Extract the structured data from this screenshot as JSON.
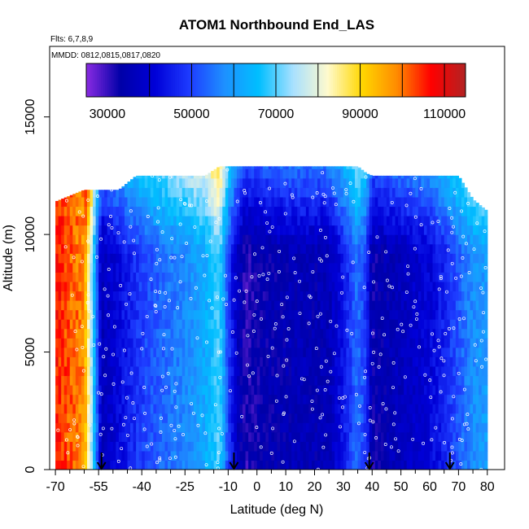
{
  "chart_data": {
    "type": "heatmap",
    "title": "ATOM1 Northbound End_LAS",
    "subtitle_flights": "Flts: 6,7,8,9",
    "subtitle_dates": "MMDD: 0812,0815,0817,0820",
    "xlabel": "Latitude (deg N)",
    "ylabel": "Altitude (m)",
    "xlim": [
      -72,
      86
    ],
    "ylim": [
      0,
      18000
    ],
    "x_ticks": [
      -70,
      -55,
      -40,
      -25,
      -10,
      0,
      10,
      20,
      30,
      40,
      50,
      60,
      70,
      80
    ],
    "x_tick_labels": [
      "-70",
      "-55",
      "-40",
      "-25",
      "-10",
      "0",
      "10",
      "20",
      "30",
      "40",
      "50",
      "60",
      "70",
      "80"
    ],
    "x_minor_ticks": [
      -65,
      -60,
      -50,
      -45,
      -35,
      -30,
      -20,
      -15,
      -5,
      5,
      15,
      25,
      35,
      45,
      55,
      65,
      75
    ],
    "y_ticks": [
      0,
      5000,
      10000,
      15000
    ],
    "y_tick_labels": [
      "0",
      "5000",
      "10000",
      "15000"
    ],
    "colorbar": {
      "range": [
        25000,
        115000
      ],
      "ticks": [
        30000,
        50000,
        70000,
        90000,
        110000
      ],
      "tick_labels": [
        "30000",
        "50000",
        "70000",
        "90000",
        "110000"
      ],
      "boundaries": [
        40000,
        50000,
        60000,
        70000,
        80000,
        90000,
        100000,
        110000
      ]
    },
    "colors": [
      "#8a2be2",
      "#0000a8",
      "#0000d8",
      "#1e3cff",
      "#1e90ff",
      "#00bfff",
      "#a8e0ff",
      "#fffacd",
      "#ffd700",
      "#ff8c00",
      "#ff0000",
      "#b22222"
    ],
    "arrows_latitude": [
      -54,
      -8,
      39,
      67
    ],
    "profile": {
      "latitudes": [
        -70,
        -60,
        -57,
        -54,
        -48,
        -42,
        -36,
        -30,
        -24,
        -18,
        -13,
        -10,
        -7,
        -4,
        0,
        5,
        10,
        15,
        20,
        25,
        30,
        35,
        38,
        40,
        45,
        50,
        55,
        60,
        65,
        70,
        75,
        80
      ],
      "values": [
        106000,
        98000,
        70000,
        36000,
        42000,
        48000,
        52000,
        55000,
        58000,
        62000,
        70000,
        50000,
        38000,
        31000,
        33000,
        34000,
        35000,
        36000,
        35000,
        36000,
        44000,
        55000,
        48000,
        33000,
        35000,
        37000,
        39000,
        41000,
        46000,
        52000,
        58000,
        60000
      ],
      "top_altitudes": [
        11400,
        11900,
        11900,
        11900,
        11900,
        12500,
        12500,
        12500,
        12500,
        12500,
        12900,
        12900,
        12900,
        12900,
        12900,
        12900,
        12900,
        12900,
        12900,
        12900,
        12900,
        12900,
        12600,
        12500,
        12500,
        12500,
        12500,
        12500,
        12500,
        12500,
        11500,
        11000
      ]
    }
  }
}
